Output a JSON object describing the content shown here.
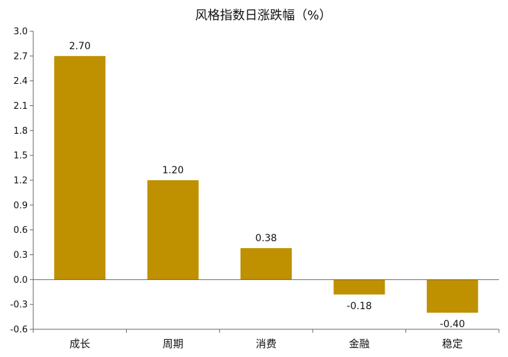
{
  "chart_data": {
    "type": "bar",
    "title": "风格指数日涨跌幅（%）",
    "categories": [
      "成长",
      "周期",
      "消费",
      "金融",
      "稳定"
    ],
    "values": [
      2.7,
      1.2,
      0.38,
      -0.18,
      -0.4
    ],
    "value_labels": [
      "2.70",
      "1.20",
      "0.38",
      "-0.18",
      "-0.40"
    ],
    "ylim": [
      -0.6,
      3.0
    ],
    "yticks": [
      "3.0",
      "2.7",
      "2.4",
      "2.1",
      "1.8",
      "1.5",
      "1.2",
      "0.9",
      "0.6",
      "0.3",
      "0.0",
      "-0.3",
      "-0.6"
    ],
    "xlabel": "",
    "ylabel": "",
    "grid": false,
    "bar_color": "#bf9000"
  }
}
